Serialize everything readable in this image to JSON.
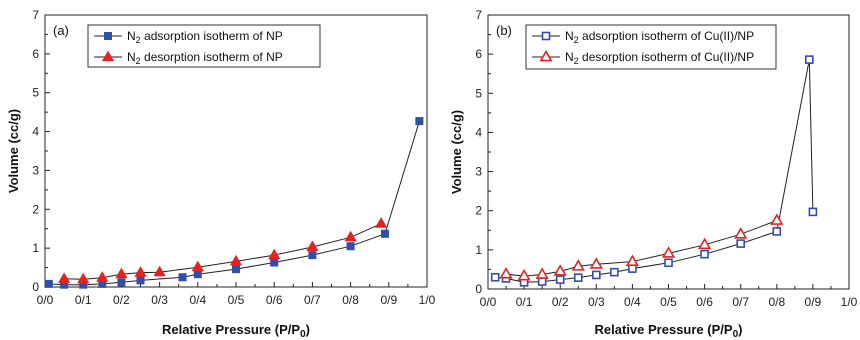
{
  "chart_data": [
    {
      "type": "line",
      "panel_label": "(a)",
      "xlabel": "Relative Pressure (P/P",
      "xlabel_sub": "0",
      "xlabel_end": ")",
      "ylabel": "Volume (cc/g)",
      "xlim": [
        0.0,
        1.0
      ],
      "ylim": [
        0,
        7
      ],
      "xticks": [
        "0/0",
        "0/1",
        "0/2",
        "0/3",
        "0/4",
        "0/5",
        "0/6",
        "0/7",
        "0/8",
        "0/9",
        "1/0"
      ],
      "yticks": [
        "0",
        "1",
        "2",
        "3",
        "4",
        "5",
        "6",
        "7"
      ],
      "legend_position": "top-left",
      "series": [
        {
          "name": "N2 adsorption isotherm of NP",
          "name_main": "N",
          "name_sub": "2",
          "name_rest": " adsorption isotherm of NP",
          "color": "#2f4faa",
          "marker": "filled-square",
          "points": [
            [
              0.01,
              0.08
            ],
            [
              0.05,
              0.06
            ],
            [
              0.1,
              0.06
            ],
            [
              0.15,
              0.08
            ],
            [
              0.2,
              0.12
            ],
            [
              0.25,
              0.17
            ],
            [
              0.36,
              0.25
            ],
            [
              0.4,
              0.33
            ],
            [
              0.5,
              0.46
            ],
            [
              0.6,
              0.63
            ],
            [
              0.7,
              0.82
            ],
            [
              0.8,
              1.05
            ],
            [
              0.89,
              1.37
            ],
            [
              0.98,
              4.27
            ]
          ]
        },
        {
          "name": "N2 desorption isotherm of NP",
          "name_main": "N",
          "name_sub": "2",
          "name_rest": " desorption isotherm of NP",
          "color": "#e8211d",
          "marker": "filled-triangle",
          "points": [
            [
              0.05,
              0.21
            ],
            [
              0.1,
              0.2
            ],
            [
              0.15,
              0.24
            ],
            [
              0.2,
              0.33
            ],
            [
              0.25,
              0.37
            ],
            [
              0.3,
              0.38
            ],
            [
              0.4,
              0.51
            ],
            [
              0.5,
              0.66
            ],
            [
              0.6,
              0.82
            ],
            [
              0.7,
              1.03
            ],
            [
              0.8,
              1.28
            ],
            [
              0.88,
              1.63
            ]
          ]
        }
      ]
    },
    {
      "type": "line",
      "panel_label": "(b)",
      "xlabel": "Relative Pressure (P/P",
      "xlabel_sub": "0",
      "xlabel_end": ")",
      "ylabel": "Volume (cc/g)",
      "xlim": [
        0.0,
        1.0
      ],
      "ylim": [
        0,
        7
      ],
      "xticks": [
        "0/0",
        "0/1",
        "0/2",
        "0/3",
        "0/4",
        "0/5",
        "0/6",
        "0/7",
        "0/8",
        "0/9",
        "1/0"
      ],
      "yticks": [
        "0",
        "1",
        "2",
        "3",
        "4",
        "5",
        "6",
        "7"
      ],
      "legend_position": "top-left",
      "series": [
        {
          "name": "N2 adsorption isotherm of Cu(II)/NP",
          "name_main": "N",
          "name_sub": "2",
          "name_rest": " adsorption isotherm of Cu(II)/NP",
          "color": "#2f4faa",
          "marker": "open-square",
          "points": [
            [
              0.02,
              0.3
            ],
            [
              0.05,
              0.27
            ],
            [
              0.1,
              0.17
            ],
            [
              0.15,
              0.19
            ],
            [
              0.2,
              0.24
            ],
            [
              0.25,
              0.29
            ],
            [
              0.3,
              0.36
            ],
            [
              0.35,
              0.43
            ],
            [
              0.4,
              0.52
            ],
            [
              0.5,
              0.67
            ],
            [
              0.6,
              0.89
            ],
            [
              0.7,
              1.16
            ],
            [
              0.8,
              1.47
            ],
            [
              0.89,
              5.86
            ],
            [
              0.9,
              1.97
            ]
          ]
        },
        {
          "name": "N2 desorption isotherm of Cu(II)/NP",
          "name_main": "N",
          "name_sub": "2",
          "name_rest": " desorption isotherm of Cu(II)/NP",
          "color": "#e8211d",
          "marker": "open-triangle",
          "points": [
            [
              0.05,
              0.38
            ],
            [
              0.1,
              0.33
            ],
            [
              0.15,
              0.37
            ],
            [
              0.2,
              0.45
            ],
            [
              0.25,
              0.58
            ],
            [
              0.3,
              0.63
            ],
            [
              0.4,
              0.7
            ],
            [
              0.5,
              0.91
            ],
            [
              0.6,
              1.13
            ],
            [
              0.7,
              1.4
            ],
            [
              0.8,
              1.75
            ]
          ]
        }
      ]
    }
  ]
}
